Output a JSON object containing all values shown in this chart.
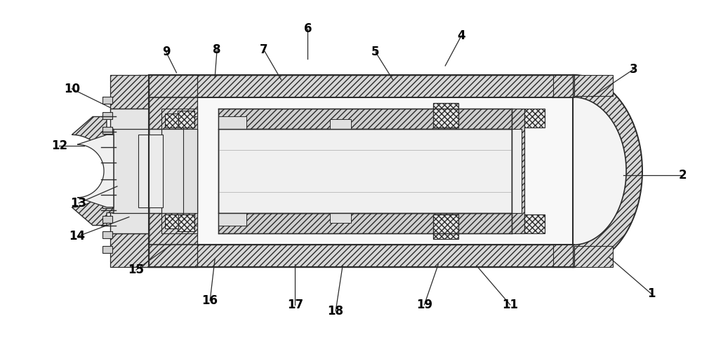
{
  "bg_color": "#ffffff",
  "lc": "#2a2a2a",
  "hatch_fc": "#d8d8d8",
  "label_fontsize": 12,
  "label_fontweight": "bold",
  "fig_width": 10.0,
  "fig_height": 4.88,
  "labels": [
    [
      "1",
      930,
      68,
      870,
      120
    ],
    [
      "2",
      975,
      238,
      890,
      238
    ],
    [
      "3",
      905,
      390,
      845,
      350
    ],
    [
      "4",
      658,
      438,
      635,
      395
    ],
    [
      "5",
      535,
      415,
      560,
      375
    ],
    [
      "6",
      438,
      448,
      438,
      405
    ],
    [
      "7",
      375,
      418,
      400,
      375
    ],
    [
      "8",
      308,
      418,
      305,
      378
    ],
    [
      "9",
      235,
      415,
      250,
      385
    ],
    [
      "10",
      100,
      362,
      155,
      335
    ],
    [
      "11",
      728,
      52,
      680,
      108
    ],
    [
      "12",
      82,
      280,
      118,
      280
    ],
    [
      "13",
      110,
      198,
      165,
      222
    ],
    [
      "14",
      108,
      150,
      182,
      178
    ],
    [
      "15",
      192,
      102,
      242,
      138
    ],
    [
      "16",
      298,
      58,
      305,
      118
    ],
    [
      "17",
      420,
      52,
      420,
      110
    ],
    [
      "18",
      478,
      43,
      488,
      108
    ],
    [
      "19",
      605,
      52,
      625,
      110
    ]
  ]
}
